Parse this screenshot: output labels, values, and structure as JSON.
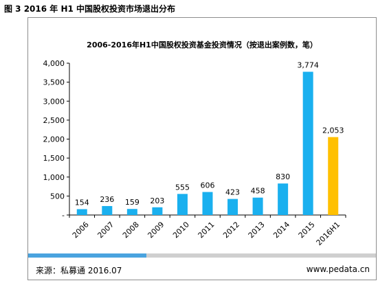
{
  "figure_caption": "图 3 2016 年 H1 中国股权投资市场退出分布",
  "footer": {
    "source": "来源：私募通 2016.07",
    "url": "www.pedata.cn"
  },
  "progress": {
    "fraction": 0.34,
    "fill_color": "#4aa3df",
    "track_color": "#cfcfcf"
  },
  "colors": {
    "bar": "#1ab0ef",
    "highlight_bar": "#ffc000",
    "axis": "#000000"
  },
  "chart_data": {
    "type": "bar",
    "title": "2006-2016年H1中国股权投资基金投资情况（按退出案例数，笔）",
    "categories": [
      "2006",
      "2007",
      "2008",
      "2009",
      "2010",
      "2011",
      "2012",
      "2013",
      "2014",
      "2015",
      "2016H1"
    ],
    "values": [
      154,
      236,
      159,
      203,
      555,
      606,
      423,
      458,
      830,
      3774,
      2053
    ],
    "value_labels": [
      "154",
      "236",
      "159",
      "203",
      "555",
      "606",
      "423",
      "458",
      "830",
      "3,774",
      "2,053"
    ],
    "highlight_category": "2016H1",
    "ylim": [
      0,
      4000
    ],
    "y_ticks": [
      0,
      500,
      1000,
      1500,
      2000,
      2500,
      3000,
      3500,
      4000
    ],
    "y_tick_labels": [
      "-",
      "500",
      "1,000",
      "1,500",
      "2,000",
      "2,500",
      "3,000",
      "3,500",
      "4,000"
    ],
    "xlabel": "",
    "ylabel": "",
    "grid": false,
    "legend": "none"
  }
}
